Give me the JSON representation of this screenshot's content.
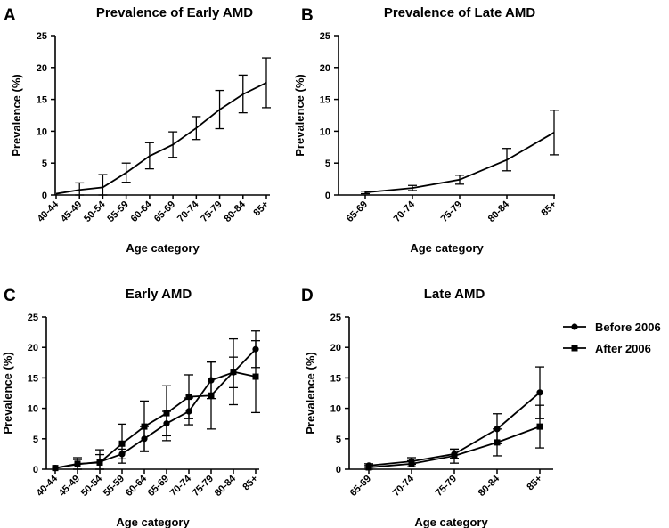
{
  "chart_data": [
    {
      "panel": "A",
      "type": "line",
      "title": "Prevalence of Early AMD",
      "xlabel": "Age category",
      "ylabel": "Prevalence (%)",
      "ylim": [
        0,
        25
      ],
      "yticks": [
        0,
        5,
        10,
        15,
        20,
        25
      ],
      "categories": [
        "40-44",
        "45-49",
        "50-54",
        "55-59",
        "60-64",
        "65-69",
        "70-74",
        "75-79",
        "80-84",
        "85+"
      ],
      "series": [
        {
          "name": "Early AMD",
          "marker": "none",
          "values": [
            0.2,
            0.8,
            1.2,
            3.5,
            6.1,
            7.9,
            10.5,
            13.4,
            15.8,
            17.6
          ],
          "error_low": [
            0.2,
            0.0,
            0.0,
            2.0,
            4.1,
            5.9,
            8.7,
            10.4,
            12.9,
            13.7
          ],
          "error_high": [
            0.2,
            1.9,
            3.2,
            5.0,
            8.2,
            9.9,
            12.3,
            16.4,
            18.8,
            21.5
          ]
        }
      ]
    },
    {
      "panel": "B",
      "type": "line",
      "title": "Prevalence of Late AMD",
      "xlabel": "Age category",
      "ylabel": "Prevalence (%)",
      "ylim": [
        0,
        25
      ],
      "yticks": [
        0,
        5,
        10,
        15,
        20,
        25
      ],
      "categories": [
        "65-69",
        "70-74",
        "75-79",
        "80-84",
        "85+"
      ],
      "series": [
        {
          "name": "Late AMD",
          "marker": "none",
          "values": [
            0.4,
            1.1,
            2.4,
            5.5,
            9.8
          ],
          "error_low": [
            0.2,
            0.7,
            1.7,
            3.8,
            6.3
          ],
          "error_high": [
            0.6,
            1.5,
            3.1,
            7.3,
            13.3
          ]
        }
      ]
    },
    {
      "panel": "C",
      "type": "line",
      "title": "Early AMD",
      "xlabel": "Age category",
      "ylabel": "Prevalence (%)",
      "ylim": [
        0,
        25
      ],
      "yticks": [
        0,
        5,
        10,
        15,
        20,
        25
      ],
      "categories": [
        "40-44",
        "45-49",
        "50-54",
        "55-59",
        "60-64",
        "65-69",
        "70-74",
        "75-79",
        "80-84",
        "85+"
      ],
      "series": [
        {
          "name": "Before 2006",
          "marker": "circle",
          "values": [
            0.2,
            0.8,
            1.2,
            2.5,
            5.0,
            7.5,
            9.5,
            14.6,
            15.9,
            19.7
          ],
          "error_low": [
            0.2,
            0.0,
            0.0,
            1.7,
            3.0,
            5.5,
            7.3,
            11.6,
            13.4,
            16.7
          ],
          "error_high": [
            0.2,
            1.6,
            2.4,
            3.3,
            7.0,
            9.5,
            11.7,
            17.6,
            18.4,
            22.7
          ]
        },
        {
          "name": "After 2006",
          "marker": "square",
          "values": [
            0.2,
            0.9,
            1.1,
            4.2,
            7.0,
            9.2,
            11.9,
            12.1,
            16.0,
            15.2
          ],
          "error_low": [
            0.2,
            0.0,
            0.0,
            1.0,
            2.9,
            4.7,
            8.3,
            6.6,
            10.6,
            9.3
          ],
          "error_high": [
            0.2,
            1.9,
            3.2,
            7.4,
            11.2,
            13.7,
            15.5,
            17.6,
            21.4,
            21.1
          ]
        }
      ]
    },
    {
      "panel": "D",
      "type": "line",
      "title": "Late AMD",
      "xlabel": "Age category",
      "ylabel": "Prevalence (%)",
      "ylim": [
        0,
        25
      ],
      "yticks": [
        0,
        5,
        10,
        15,
        20,
        25
      ],
      "categories": [
        "65-69",
        "70-74",
        "75-79",
        "80-84",
        "85+"
      ],
      "series": [
        {
          "name": "Before 2006",
          "marker": "circle",
          "values": [
            0.6,
            1.3,
            2.5,
            6.6,
            12.6
          ],
          "error_low": [
            0.3,
            0.8,
            1.8,
            4.2,
            8.3
          ],
          "error_high": [
            0.9,
            1.9,
            3.3,
            9.1,
            16.8
          ]
        },
        {
          "name": "After 2006",
          "marker": "square",
          "values": [
            0.3,
            0.9,
            2.2,
            4.4,
            7.0
          ],
          "error_low": [
            0.0,
            0.4,
            1.0,
            2.2,
            3.5
          ],
          "error_high": [
            0.6,
            1.4,
            3.3,
            6.6,
            10.5
          ]
        }
      ],
      "legend": {
        "position": "right",
        "entries": [
          "Before 2006",
          "After 2006"
        ]
      }
    }
  ]
}
